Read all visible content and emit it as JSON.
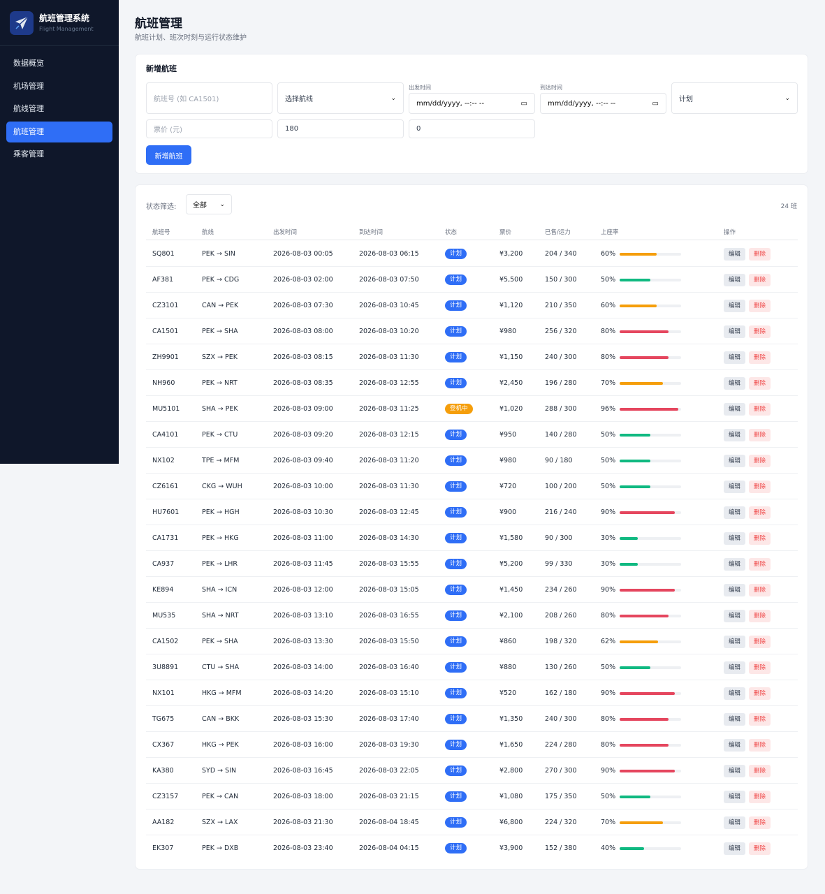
{
  "app": {
    "title": "航班管理系统",
    "subtitle": "Flight Management"
  },
  "sidebar": {
    "items": [
      {
        "label": "数据概览",
        "active": false
      },
      {
        "label": "机场管理",
        "active": false
      },
      {
        "label": "航线管理",
        "active": false
      },
      {
        "label": "航班管理",
        "active": true
      },
      {
        "label": "乘客管理",
        "active": false
      }
    ]
  },
  "page": {
    "title": "航班管理",
    "subtitle": "航班计划、班次时刻与运行状态维护"
  },
  "form": {
    "title": "新增航班",
    "flight_no_placeholder": "航班号 (如 CA1501)",
    "route_select": "选择航线",
    "depart_label": "出发时间",
    "depart_value": "mm/dd/yyyy, --:-- --",
    "arrive_label": "到达时间",
    "arrive_value": "mm/dd/yyyy, --:-- --",
    "status_select": "计划",
    "price_placeholder": "票价 (元)",
    "capacity_value": "180",
    "sold_value": "0",
    "submit_label": "新增航班"
  },
  "list": {
    "filter_label": "状态筛选:",
    "filter_value": "全部",
    "count": "24 班",
    "columns": [
      "航班号",
      "航线",
      "出发时间",
      "到达时间",
      "状态",
      "票价",
      "已售/运力",
      "上座率",
      "操作"
    ],
    "edit_label": "编辑",
    "delete_label": "删除",
    "rows": [
      {
        "no": "SQ801",
        "route": "PEK → SIN",
        "dep": "2026-08-03 00:05",
        "arr": "2026-08-03 06:15",
        "status": "计划",
        "price": "¥3,200",
        "sold": "204 / 340",
        "load": "60%",
        "load_value": 60
      },
      {
        "no": "AF381",
        "route": "PEK → CDG",
        "dep": "2026-08-03 02:00",
        "arr": "2026-08-03 07:50",
        "status": "计划",
        "price": "¥5,500",
        "sold": "150 / 300",
        "load": "50%",
        "load_value": 50
      },
      {
        "no": "CZ3101",
        "route": "CAN → PEK",
        "dep": "2026-08-03 07:30",
        "arr": "2026-08-03 10:45",
        "status": "计划",
        "price": "¥1,120",
        "sold": "210 / 350",
        "load": "60%",
        "load_value": 60
      },
      {
        "no": "CA1501",
        "route": "PEK → SHA",
        "dep": "2026-08-03 08:00",
        "arr": "2026-08-03 10:20",
        "status": "计划",
        "price": "¥980",
        "sold": "256 / 320",
        "load": "80%",
        "load_value": 80
      },
      {
        "no": "ZH9901",
        "route": "SZX → PEK",
        "dep": "2026-08-03 08:15",
        "arr": "2026-08-03 11:30",
        "status": "计划",
        "price": "¥1,150",
        "sold": "240 / 300",
        "load": "80%",
        "load_value": 80
      },
      {
        "no": "NH960",
        "route": "PEK → NRT",
        "dep": "2026-08-03 08:35",
        "arr": "2026-08-03 12:55",
        "status": "计划",
        "price": "¥2,450",
        "sold": "196 / 280",
        "load": "70%",
        "load_value": 70
      },
      {
        "no": "MU5101",
        "route": "SHA → PEK",
        "dep": "2026-08-03 09:00",
        "arr": "2026-08-03 11:25",
        "status": "登机中",
        "price": "¥1,020",
        "sold": "288 / 300",
        "load": "96%",
        "load_value": 96
      },
      {
        "no": "CA4101",
        "route": "PEK → CTU",
        "dep": "2026-08-03 09:20",
        "arr": "2026-08-03 12:15",
        "status": "计划",
        "price": "¥950",
        "sold": "140 / 280",
        "load": "50%",
        "load_value": 50
      },
      {
        "no": "NX102",
        "route": "TPE → MFM",
        "dep": "2026-08-03 09:40",
        "arr": "2026-08-03 11:20",
        "status": "计划",
        "price": "¥980",
        "sold": "90 / 180",
        "load": "50%",
        "load_value": 50
      },
      {
        "no": "CZ6161",
        "route": "CKG → WUH",
        "dep": "2026-08-03 10:00",
        "arr": "2026-08-03 11:30",
        "status": "计划",
        "price": "¥720",
        "sold": "100 / 200",
        "load": "50%",
        "load_value": 50
      },
      {
        "no": "HU7601",
        "route": "PEK → HGH",
        "dep": "2026-08-03 10:30",
        "arr": "2026-08-03 12:45",
        "status": "计划",
        "price": "¥900",
        "sold": "216 / 240",
        "load": "90%",
        "load_value": 90
      },
      {
        "no": "CA1731",
        "route": "PEK → HKG",
        "dep": "2026-08-03 11:00",
        "arr": "2026-08-03 14:30",
        "status": "计划",
        "price": "¥1,580",
        "sold": "90 / 300",
        "load": "30%",
        "load_value": 30
      },
      {
        "no": "CA937",
        "route": "PEK → LHR",
        "dep": "2026-08-03 11:45",
        "arr": "2026-08-03 15:55",
        "status": "计划",
        "price": "¥5,200",
        "sold": "99 / 330",
        "load": "30%",
        "load_value": 30
      },
      {
        "no": "KE894",
        "route": "SHA → ICN",
        "dep": "2026-08-03 12:00",
        "arr": "2026-08-03 15:05",
        "status": "计划",
        "price": "¥1,450",
        "sold": "234 / 260",
        "load": "90%",
        "load_value": 90
      },
      {
        "no": "MU535",
        "route": "SHA → NRT",
        "dep": "2026-08-03 13:10",
        "arr": "2026-08-03 16:55",
        "status": "计划",
        "price": "¥2,100",
        "sold": "208 / 260",
        "load": "80%",
        "load_value": 80
      },
      {
        "no": "CA1502",
        "route": "PEK → SHA",
        "dep": "2026-08-03 13:30",
        "arr": "2026-08-03 15:50",
        "status": "计划",
        "price": "¥860",
        "sold": "198 / 320",
        "load": "62%",
        "load_value": 62
      },
      {
        "no": "3U8891",
        "route": "CTU → SHA",
        "dep": "2026-08-03 14:00",
        "arr": "2026-08-03 16:40",
        "status": "计划",
        "price": "¥880",
        "sold": "130 / 260",
        "load": "50%",
        "load_value": 50
      },
      {
        "no": "NX101",
        "route": "HKG → MFM",
        "dep": "2026-08-03 14:20",
        "arr": "2026-08-03 15:10",
        "status": "计划",
        "price": "¥520",
        "sold": "162 / 180",
        "load": "90%",
        "load_value": 90
      },
      {
        "no": "TG675",
        "route": "CAN → BKK",
        "dep": "2026-08-03 15:30",
        "arr": "2026-08-03 17:40",
        "status": "计划",
        "price": "¥1,350",
        "sold": "240 / 300",
        "load": "80%",
        "load_value": 80
      },
      {
        "no": "CX367",
        "route": "HKG → PEK",
        "dep": "2026-08-03 16:00",
        "arr": "2026-08-03 19:30",
        "status": "计划",
        "price": "¥1,650",
        "sold": "224 / 280",
        "load": "80%",
        "load_value": 80
      },
      {
        "no": "KA380",
        "route": "SYD → SIN",
        "dep": "2026-08-03 16:45",
        "arr": "2026-08-03 22:05",
        "status": "计划",
        "price": "¥2,800",
        "sold": "270 / 300",
        "load": "90%",
        "load_value": 90
      },
      {
        "no": "CZ3157",
        "route": "PEK → CAN",
        "dep": "2026-08-03 18:00",
        "arr": "2026-08-03 21:15",
        "status": "计划",
        "price": "¥1,080",
        "sold": "175 / 350",
        "load": "50%",
        "load_value": 50
      },
      {
        "no": "AA182",
        "route": "SZX → LAX",
        "dep": "2026-08-03 21:30",
        "arr": "2026-08-04 18:45",
        "status": "计划",
        "price": "¥6,800",
        "sold": "224 / 320",
        "load": "70%",
        "load_value": 70
      },
      {
        "no": "EK307",
        "route": "PEK → DXB",
        "dep": "2026-08-03 23:40",
        "arr": "2026-08-04 04:15",
        "status": "计划",
        "price": "¥3,900",
        "sold": "152 / 380",
        "load": "40%",
        "load_value": 40
      }
    ]
  },
  "colors": {
    "primary": "#2f6ef6",
    "status_planned": "#2f6ef6",
    "status_boarding": "#f59e0b",
    "load_low": "#10b981",
    "load_mid": "#f59e0b",
    "load_high": "#e5465e"
  }
}
